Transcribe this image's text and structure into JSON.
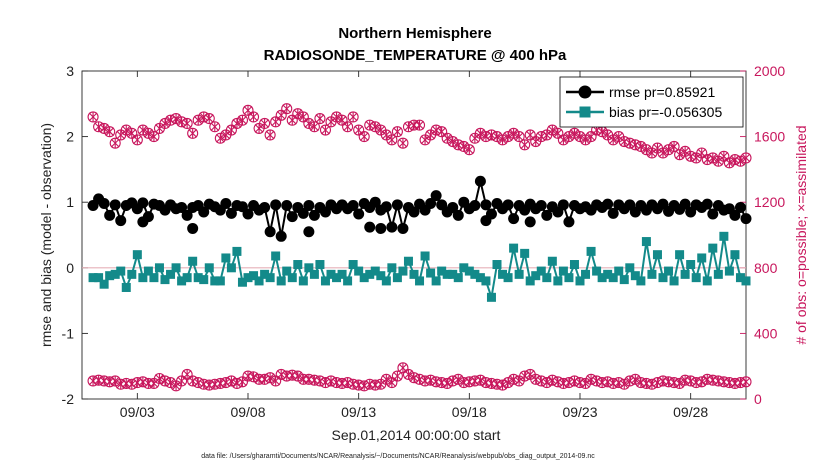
{
  "chart_data": {
    "type": "line",
    "title": "Northern Hemisphere",
    "subtitle": "RADIOSONDE_TEMPERATURE @ 400 hPa",
    "xlabel": "Sep.01,2014 00:00:00 start",
    "ylabel": "rmse and bias (model - observation)",
    "ylabel_right": "# of obs: o=possible; ×=assimilated",
    "footnote": "data file: /Users/gharamti/Documents/NCAR/Reanalysis/~/Documents/NCAR/Reanalysis/webpub/obs_diag_output_2014-09.nc",
    "x_range": [
      0.5,
      30.5
    ],
    "ylim": [
      -2,
      3
    ],
    "ylim_right": [
      0,
      2000
    ],
    "x_ticks": [
      {
        "x": 3,
        "label": "09/03"
      },
      {
        "x": 8,
        "label": "09/08"
      },
      {
        "x": 13,
        "label": "09/13"
      },
      {
        "x": 18,
        "label": "09/18"
      },
      {
        "x": 23,
        "label": "09/23"
      },
      {
        "x": 28,
        "label": "09/28"
      }
    ],
    "y_ticks": [
      {
        "v": 3,
        "label": "3"
      },
      {
        "v": 2,
        "label": "2"
      },
      {
        "v": 1,
        "label": "1"
      },
      {
        "v": 0,
        "label": "0"
      },
      {
        "v": -1,
        "label": "-1"
      },
      {
        "v": -2,
        "label": "-2"
      }
    ],
    "y_ticks_right": [
      {
        "v": 2000,
        "label": "2000"
      },
      {
        "v": 1600,
        "label": "1600"
      },
      {
        "v": 1200,
        "label": "1200"
      },
      {
        "v": 800,
        "label": "800"
      },
      {
        "v": 400,
        "label": "400"
      },
      {
        "v": 0,
        "label": "0"
      }
    ],
    "legend_position": "top-right",
    "x_step_days": 0.25,
    "colors": {
      "rmse": "#000000",
      "bias": "#138a8a",
      "obs": "#c8175d",
      "zero_line": "#e6b0b8"
    },
    "series": [
      {
        "name": "rmse pr=0.85921",
        "axis": "left",
        "values": [
          0.95,
          1.05,
          0.98,
          0.8,
          0.96,
          0.72,
          0.95,
          0.99,
          0.9,
          0.99,
          0.78,
          0.97,
          0.95,
          0.88,
          0.96,
          0.9,
          0.92,
          0.8,
          0.92,
          0.95,
          0.85,
          0.97,
          0.93,
          0.88,
          0.98,
          0.83,
          0.95,
          0.93,
          0.82,
          0.95,
          0.88,
          0.92,
          0.55,
          0.96,
          0.48,
          0.95,
          0.78,
          0.92,
          0.83,
          0.95,
          0.8,
          0.92,
          0.85,
          0.96,
          0.9,
          0.96,
          0.9,
          0.95,
          0.82,
          0.98,
          0.92,
          1.0,
          0.88,
          0.93,
          0.62,
          0.96,
          0.6,
          0.92,
          0.85,
          0.97,
          0.88,
          0.98,
          1.1,
          0.96,
          0.85,
          0.92,
          0.8,
          1.0,
          0.9,
          0.95,
          1.32,
          0.96,
          0.82,
          0.98,
          0.9,
          0.96,
          0.75,
          0.95,
          0.88,
          0.97,
          0.9,
          0.95,
          0.8,
          0.93,
          0.85,
          0.96,
          0.7,
          0.95,
          0.9,
          0.93,
          0.88,
          0.96,
          0.92,
          0.97,
          0.83,
          0.96,
          0.9,
          0.96,
          0.85,
          0.95,
          0.88,
          0.96,
          0.9,
          0.97,
          0.86,
          0.95,
          0.89,
          0.97,
          0.85,
          0.96,
          0.92,
          0.97,
          0.82,
          0.95,
          0.88,
          0.9,
          0.8,
          0.92,
          0.75,
          0.92,
          0.68,
          0.9,
          0.7,
          0.89,
          0.66
        ],
        "spikes": [
          [
            14.0,
            0.6
          ],
          [
            13.5,
            0.62
          ],
          [
            10.75,
            0.55
          ],
          [
            18.75,
            0.72
          ],
          [
            20.75,
            0.7
          ],
          [
            5.5,
            0.6
          ],
          [
            3.25,
            0.7
          ]
        ]
      },
      {
        "name": "bias pr=-0.056305",
        "axis": "left",
        "values": [
          -0.15,
          -0.15,
          -0.25,
          -0.12,
          -0.1,
          -0.05,
          -0.3,
          -0.1,
          0.2,
          -0.15,
          -0.05,
          -0.15,
          0.0,
          -0.18,
          -0.1,
          0.0,
          -0.2,
          -0.15,
          0.1,
          -0.15,
          -0.18,
          0.0,
          -0.2,
          -0.2,
          0.15,
          0.0,
          0.25,
          -0.22,
          -0.15,
          -0.12,
          -0.2,
          -0.1,
          -0.15,
          0.18,
          -0.2,
          -0.05,
          -0.15,
          0.05,
          -0.2,
          0.0,
          -0.1,
          0.05,
          -0.2,
          -0.1,
          -0.15,
          -0.1,
          -0.2,
          0.05,
          -0.05,
          -0.15,
          -0.1,
          -0.05,
          -0.12,
          -0.2,
          0.0,
          -0.15,
          -0.05,
          0.1,
          -0.1,
          -0.2,
          0.18,
          -0.08,
          -0.2,
          -0.05,
          -0.1,
          -0.1,
          -0.15,
          0.0,
          -0.05,
          -0.1,
          -0.15,
          -0.2,
          -0.45,
          0.05,
          -0.1,
          -0.15,
          0.3,
          -0.1,
          0.22,
          -0.2,
          -0.12,
          -0.05,
          -0.15,
          0.1,
          -0.2,
          -0.05,
          -0.15,
          0.05,
          -0.2,
          -0.1,
          0.25,
          -0.05,
          -0.15,
          -0.1,
          -0.15,
          -0.05,
          -0.18,
          0.0,
          -0.12,
          -0.2,
          0.4,
          -0.1,
          0.2,
          -0.15,
          -0.05,
          -0.2,
          0.2,
          -0.1,
          0.05,
          -0.15,
          0.15,
          -0.2,
          0.3,
          -0.1,
          0.48,
          -0.05,
          0.2,
          -0.15,
          -0.2,
          0.05,
          -0.1,
          0.0,
          -0.15,
          -0.1,
          -0.15,
          0.05
        ]
      },
      {
        "name": "obs possible",
        "axis": "right",
        "marker": "circle",
        "values": [
          1720,
          1660,
          1650,
          1630,
          1560,
          1610,
          1640,
          1620,
          1580,
          1640,
          1620,
          1600,
          1650,
          1680,
          1700,
          1710,
          1690,
          1680,
          1620,
          1700,
          1720,
          1710,
          1660,
          1590,
          1610,
          1640,
          1680,
          1700,
          1760,
          1720,
          1650,
          1680,
          1610,
          1690,
          1730,
          1770,
          1700,
          1740,
          1720,
          1680,
          1660,
          1710,
          1640,
          1690,
          1720,
          1700,
          1660,
          1720,
          1640,
          1600,
          1670,
          1660,
          1640,
          1610,
          1580,
          1630,
          1560,
          1660,
          1670,
          1670,
          1580,
          1610,
          1640,
          1630,
          1590,
          1570,
          1550,
          1540,
          1520,
          1590,
          1620,
          1600,
          1610,
          1600,
          1580,
          1600,
          1620,
          1600,
          1550,
          1610,
          1570,
          1600,
          1610,
          1640,
          1620,
          1580,
          1600,
          1620,
          1600,
          1580,
          1600,
          1640,
          1630,
          1610,
          1580,
          1600,
          1570,
          1560,
          1550,
          1540,
          1520,
          1500,
          1530,
          1500,
          1520,
          1540,
          1490,
          1510,
          1480,
          1470,
          1500,
          1460,
          1470,
          1450,
          1480,
          1440,
          1460,
          1450,
          1470,
          1460,
          1450,
          1490,
          1530,
          1460,
          1550
        ],
        "values_bottom": [
          110,
          115,
          110,
          105,
          110,
          90,
          95,
          90,
          100,
          105,
          95,
          95,
          125,
          110,
          100,
          80,
          110,
          150,
          110,
          100,
          90,
          85,
          90,
          95,
          100,
          110,
          95,
          105,
          140,
          135,
          120,
          120,
          130,
          110,
          150,
          140,
          145,
          140,
          120,
          120,
          115,
          110,
          100,
          110,
          100,
          95,
          100,
          90,
          85,
          80,
          90,
          85,
          90,
          120,
          100,
          140,
          190,
          150,
          130,
          120,
          110,
          115,
          105,
          100,
          95,
          110,
          120,
          100,
          105,
          110,
          115,
          100,
          95,
          90,
          85,
          100,
          120,
          110,
          140,
          150,
          120,
          110,
          100,
          115,
          105,
          95,
          100,
          110,
          100,
          95,
          120,
          110,
          100,
          105,
          95,
          100,
          90,
          110,
          120,
          100,
          95,
          90,
          100,
          110,
          105,
          100,
          95,
          115,
          110,
          100,
          105,
          120,
          115,
          110,
          105,
          100,
          95,
          100,
          105,
          100,
          95,
          90,
          85,
          40,
          0
        ]
      }
    ]
  }
}
